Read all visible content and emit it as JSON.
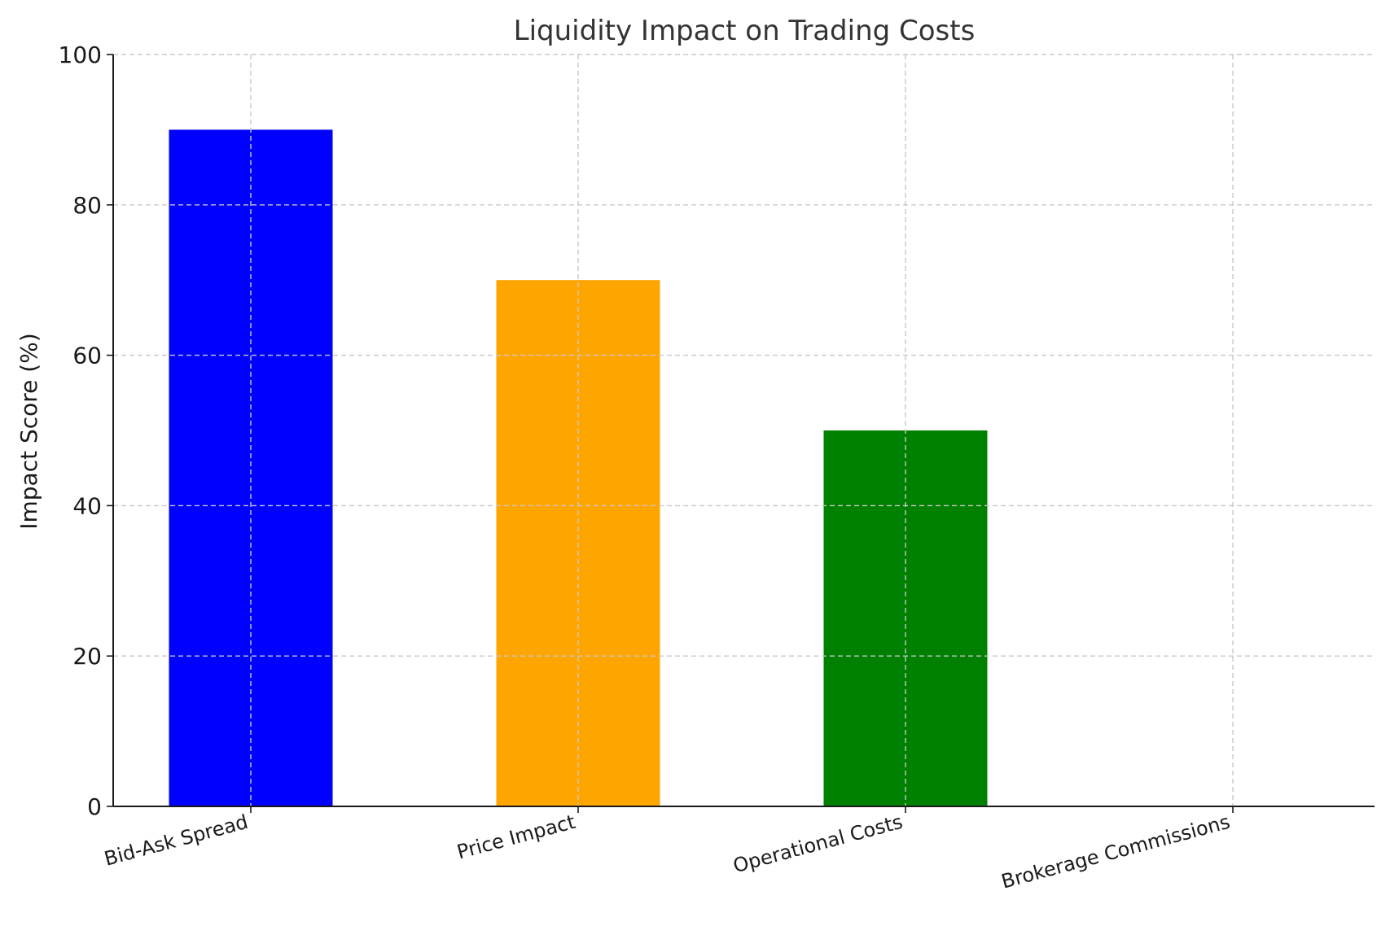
{
  "chart_data": {
    "type": "bar",
    "title": "Liquidity Impact on Trading Costs",
    "xlabel": "",
    "ylabel": "Impact Score (%)",
    "categories": [
      "Bid-Ask Spread",
      "Price Impact",
      "Operational Costs",
      "Brokerage Commissions"
    ],
    "values": [
      90,
      70,
      50,
      0
    ],
    "colors": [
      "#0000ff",
      "#ffa500",
      "#008000",
      "#ff0000"
    ],
    "ylim": [
      0,
      100
    ],
    "yticks": [
      0,
      20,
      40,
      60,
      80,
      100
    ],
    "ytick_labels": [
      "0",
      "20",
      "40",
      "60",
      "80",
      "100"
    ],
    "grid": true,
    "legend": "none"
  }
}
